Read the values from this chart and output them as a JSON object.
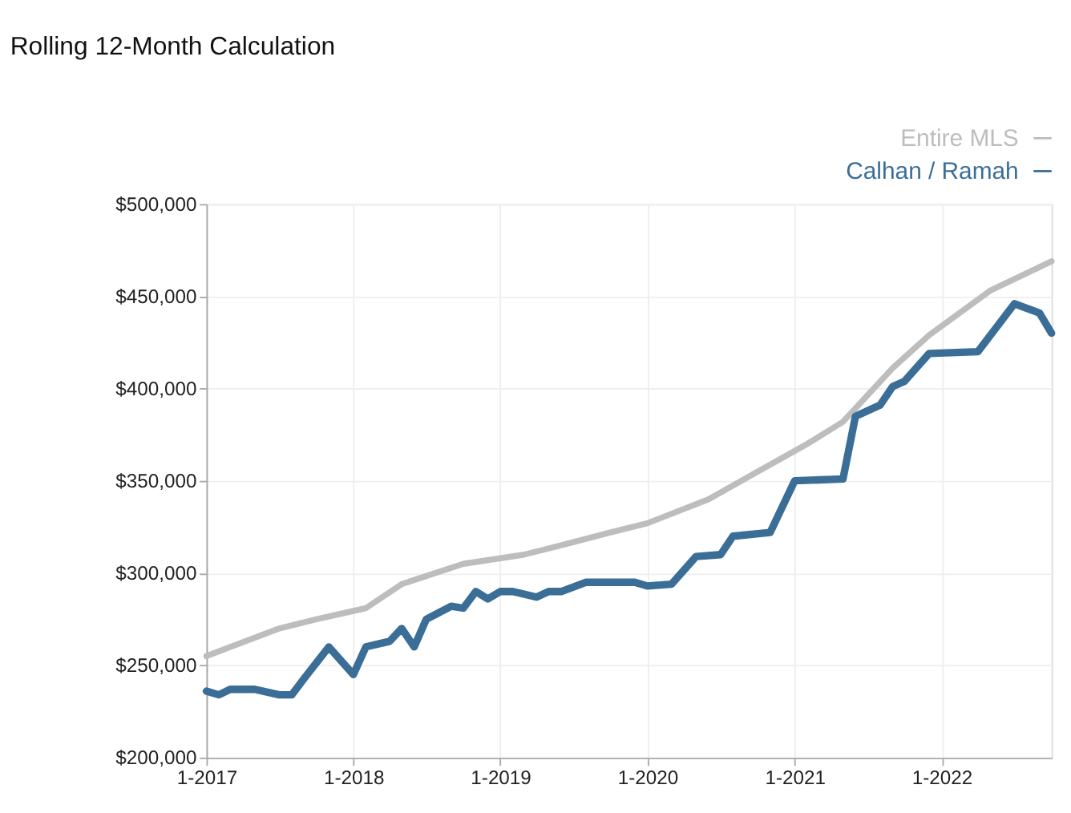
{
  "chart_data": {
    "type": "line",
    "title": "Rolling 12-Month Calculation",
    "xlim": [
      "2017-01",
      "2022-10"
    ],
    "xticks": [
      {
        "value": "2017-01",
        "label": "1-2017"
      },
      {
        "value": "2018-01",
        "label": "1-2018"
      },
      {
        "value": "2019-01",
        "label": "1-2019"
      },
      {
        "value": "2020-01",
        "label": "1-2020"
      },
      {
        "value": "2021-01",
        "label": "1-2021"
      },
      {
        "value": "2022-01",
        "label": "1-2022"
      }
    ],
    "ylim": [
      200000,
      500000
    ],
    "yticks": [
      {
        "value": 200000,
        "label": "$200,000"
      },
      {
        "value": 250000,
        "label": "$250,000"
      },
      {
        "value": 300000,
        "label": "$300,000"
      },
      {
        "value": 350000,
        "label": "$350,000"
      },
      {
        "value": 400000,
        "label": "$400,000"
      },
      {
        "value": 450000,
        "label": "$450,000"
      },
      {
        "value": 500000,
        "label": "$500,000"
      }
    ],
    "grid": true,
    "legend": "top right",
    "marker": "none",
    "line_style": "solid",
    "series": [
      {
        "name": "Entire MLS",
        "color": "#bdbdbd",
        "x": [
          "2017-01",
          "2017-07",
          "2017-10",
          "2018-02",
          "2018-05",
          "2018-10",
          "2019-03",
          "2019-06",
          "2019-10",
          "2020-01",
          "2020-06",
          "2020-10",
          "2021-02",
          "2021-05",
          "2021-09",
          "2021-12",
          "2022-05",
          "2022-10"
        ],
        "values": [
          255000,
          270000,
          275000,
          281000,
          294000,
          305000,
          310000,
          315000,
          322000,
          327000,
          340000,
          355000,
          370000,
          382000,
          411000,
          429000,
          453000,
          469000
        ]
      },
      {
        "name": "Calhan / Ramah",
        "color": "#3b6e97",
        "x": [
          "2017-01",
          "2017-02",
          "2017-03",
          "2017-05",
          "2017-07",
          "2017-08",
          "2017-09",
          "2017-11",
          "2018-01",
          "2018-02",
          "2018-04",
          "2018-05",
          "2018-06",
          "2018-07",
          "2018-09",
          "2018-10",
          "2018-11",
          "2018-12",
          "2019-01",
          "2019-02",
          "2019-04",
          "2019-05",
          "2019-06",
          "2019-08",
          "2019-10",
          "2019-12",
          "2020-01",
          "2020-03",
          "2020-05",
          "2020-07",
          "2020-08",
          "2020-11",
          "2021-01",
          "2021-05",
          "2021-06",
          "2021-08",
          "2021-09",
          "2021-10",
          "2021-12",
          "2022-04",
          "2022-07",
          "2022-09",
          "2022-10"
        ],
        "values": [
          236000,
          234000,
          237000,
          237000,
          234000,
          234000,
          243000,
          260000,
          245000,
          260000,
          263000,
          270000,
          260000,
          275000,
          282000,
          281000,
          290000,
          286000,
          290000,
          290000,
          287000,
          290000,
          290000,
          295000,
          295000,
          295000,
          293000,
          294000,
          309000,
          310000,
          320000,
          322000,
          350000,
          351000,
          385000,
          391000,
          401000,
          404000,
          419000,
          420000,
          446000,
          441000,
          430000
        ]
      }
    ]
  }
}
